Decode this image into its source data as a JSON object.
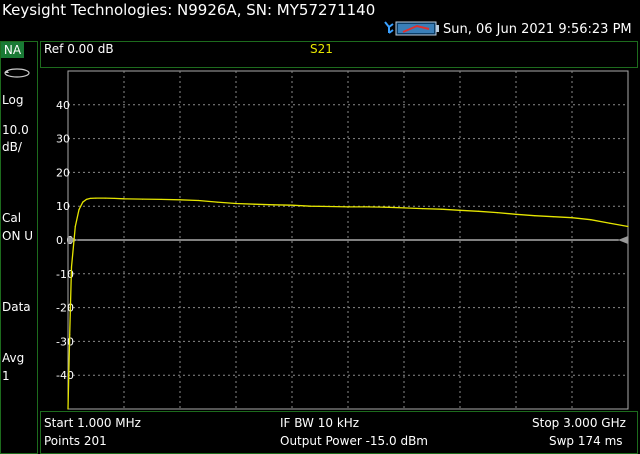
{
  "header": {
    "instrument_title": "Keysight Technologies: N9926A, SN: MY57271140",
    "datetime": "Sun, 06 Jun 2021 9:56:23 PM"
  },
  "sidebar": {
    "mode": "NA",
    "scale_type": "Log",
    "scale_value": "10.0",
    "scale_unit": "dB/",
    "cal_label": "Cal",
    "cal_state": "ON U",
    "data_label": "Data",
    "avg_label": "Avg",
    "avg_value": "1"
  },
  "trace_header": {
    "ref": "Ref 0.00 dB",
    "measurement": "S21"
  },
  "footer": {
    "start": "Start 1.000 MHz",
    "points": "Points 201",
    "if_bw": "IF BW 10 kHz",
    "output_power": "Output Power -15.0 dBm",
    "stop": "Stop 3.000 GHz",
    "sweep": "Swp 174 ms"
  },
  "colors": {
    "trace": "#e6e600",
    "grid": "#8a8a8a",
    "frame": "#1d6b1d",
    "reference_line": "#ffffff"
  },
  "chart_data": {
    "type": "line",
    "title": "S21",
    "xlabel": "",
    "ylabel": "",
    "xlim": [
      0.001,
      3.0
    ],
    "ylim": [
      -50,
      50
    ],
    "yticks": [
      "40",
      "30",
      "20",
      "10",
      "0.0",
      "-10",
      "-20",
      "-30",
      "-40"
    ],
    "grid": true,
    "reference_level": 0,
    "series": [
      {
        "x": [
          0.001,
          0.01,
          0.02,
          0.04,
          0.06,
          0.08,
          0.1,
          0.12,
          0.15,
          0.2,
          0.25,
          0.3,
          0.4,
          0.5,
          0.6,
          0.7,
          0.8,
          0.9,
          1.0,
          1.1,
          1.2,
          1.3,
          1.4,
          1.5,
          1.6,
          1.7,
          1.8,
          1.9,
          2.0,
          2.1,
          2.2,
          2.3,
          2.4,
          2.5,
          2.6,
          2.7,
          2.8,
          2.9,
          3.0
        ],
        "values": [
          -50,
          -28,
          -8,
          4,
          9,
          11.2,
          12,
          12.3,
          12.4,
          12.4,
          12.3,
          12.2,
          12.1,
          12.0,
          11.9,
          11.7,
          11.2,
          10.8,
          10.6,
          10.4,
          10.3,
          10.0,
          9.9,
          9.8,
          9.8,
          9.7,
          9.5,
          9.3,
          9.1,
          8.8,
          8.5,
          8.1,
          7.6,
          7.2,
          6.9,
          6.6,
          6.0,
          5.0,
          4.0
        ]
      }
    ]
  }
}
